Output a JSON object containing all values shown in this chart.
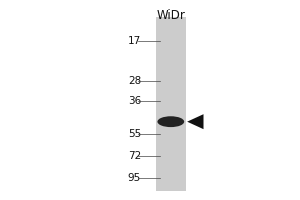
{
  "bg_color": "#ffffff",
  "lane_label": "WiDr",
  "mw_markers": [
    95,
    72,
    55,
    36,
    28,
    17
  ],
  "band_kda": 47,
  "arrow_color": "#111111",
  "band_color": "#222222",
  "fig_width": 3.0,
  "fig_height": 2.0,
  "dpi": 100,
  "gel_strip_color": "#cccccc",
  "lane_color": "#c0c0c0",
  "log_min": 1.1,
  "log_max": 2.05
}
